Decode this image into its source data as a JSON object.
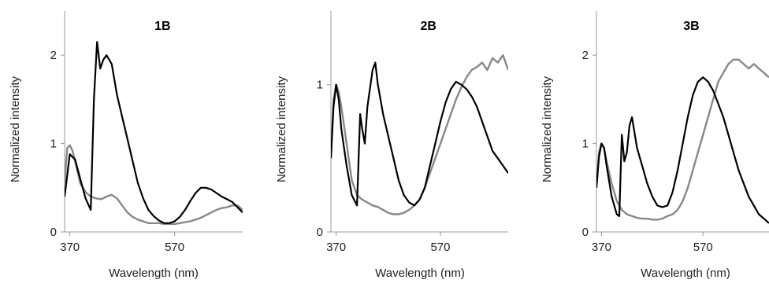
{
  "chart_data": [
    {
      "type": "line",
      "title": "1B",
      "xlabel": "Wavelength  (nm)",
      "ylabel": "Normalized intensity",
      "xlim": [
        360,
        700
      ],
      "ylim": [
        0,
        2.5
      ],
      "xticks": [
        370,
        570
      ],
      "yticks": [
        0,
        1,
        2
      ],
      "grid": false,
      "legend": "none",
      "series": [
        {
          "color": "#000000",
          "x": [
            360,
            370,
            380,
            390,
            400,
            410,
            416,
            422,
            428,
            434,
            440,
            450,
            460,
            470,
            480,
            490,
            500,
            510,
            520,
            530,
            540,
            550,
            560,
            570,
            580,
            590,
            600,
            610,
            620,
            630,
            640,
            650,
            660,
            670,
            680,
            690,
            700
          ],
          "y": [
            0.4,
            0.88,
            0.82,
            0.6,
            0.38,
            0.25,
            1.5,
            2.15,
            1.85,
            1.95,
            2.0,
            1.9,
            1.55,
            1.3,
            1.05,
            0.8,
            0.55,
            0.38,
            0.25,
            0.18,
            0.13,
            0.1,
            0.1,
            0.12,
            0.17,
            0.25,
            0.35,
            0.44,
            0.5,
            0.5,
            0.48,
            0.44,
            0.4,
            0.37,
            0.34,
            0.28,
            0.22
          ]
        },
        {
          "color": "#888888",
          "x": [
            360,
            365,
            370,
            375,
            380,
            390,
            400,
            410,
            420,
            430,
            440,
            450,
            460,
            470,
            480,
            490,
            500,
            510,
            520,
            530,
            540,
            550,
            560,
            570,
            580,
            590,
            600,
            610,
            620,
            630,
            640,
            650,
            660,
            670,
            680,
            690,
            700
          ],
          "y": [
            0.55,
            0.95,
            0.98,
            0.92,
            0.8,
            0.55,
            0.45,
            0.4,
            0.38,
            0.37,
            0.4,
            0.42,
            0.38,
            0.3,
            0.22,
            0.17,
            0.14,
            0.12,
            0.1,
            0.1,
            0.1,
            0.09,
            0.09,
            0.09,
            0.1,
            0.11,
            0.12,
            0.14,
            0.16,
            0.19,
            0.22,
            0.25,
            0.27,
            0.28,
            0.3,
            0.3,
            0.25
          ]
        }
      ]
    },
    {
      "type": "line",
      "title": "2B",
      "xlabel": "Wavelength  (nm)",
      "ylabel": "Normalized intensity",
      "xlim": [
        360,
        700
      ],
      "ylim": [
        0,
        1.5
      ],
      "xticks": [
        370,
        570
      ],
      "yticks": [
        0,
        1
      ],
      "grid": false,
      "legend": "none",
      "series": [
        {
          "color": "#000000",
          "x": [
            360,
            365,
            370,
            375,
            380,
            390,
            400,
            410,
            416,
            420,
            425,
            430,
            440,
            445,
            450,
            460,
            470,
            480,
            490,
            500,
            510,
            520,
            530,
            540,
            550,
            560,
            570,
            580,
            590,
            600,
            610,
            620,
            630,
            640,
            650,
            660,
            670,
            680,
            690,
            700
          ],
          "y": [
            0.5,
            0.85,
            1.0,
            0.9,
            0.7,
            0.45,
            0.25,
            0.18,
            0.8,
            0.7,
            0.6,
            0.85,
            1.1,
            1.15,
            1.0,
            0.8,
            0.65,
            0.5,
            0.35,
            0.25,
            0.2,
            0.18,
            0.22,
            0.3,
            0.45,
            0.6,
            0.75,
            0.88,
            0.97,
            1.02,
            1.0,
            0.97,
            0.92,
            0.85,
            0.75,
            0.65,
            0.55,
            0.5,
            0.45,
            0.4
          ]
        },
        {
          "color": "#888888",
          "x": [
            360,
            365,
            370,
            375,
            380,
            390,
            400,
            410,
            420,
            430,
            440,
            450,
            460,
            470,
            480,
            490,
            500,
            510,
            520,
            530,
            540,
            550,
            560,
            570,
            580,
            590,
            600,
            610,
            620,
            630,
            640,
            650,
            660,
            670,
            680,
            690,
            700
          ],
          "y": [
            0.5,
            0.9,
            1.0,
            0.95,
            0.85,
            0.6,
            0.35,
            0.25,
            0.22,
            0.2,
            0.18,
            0.17,
            0.15,
            0.13,
            0.12,
            0.12,
            0.13,
            0.15,
            0.18,
            0.22,
            0.3,
            0.4,
            0.5,
            0.6,
            0.7,
            0.8,
            0.9,
            0.98,
            1.05,
            1.1,
            1.12,
            1.15,
            1.1,
            1.18,
            1.15,
            1.2,
            1.1
          ]
        }
      ]
    },
    {
      "type": "line",
      "title": "3B",
      "xlabel": "Wavelength  (nm)",
      "ylabel": "Normalized intensity",
      "xlim": [
        360,
        700
      ],
      "ylim": [
        0,
        2.5
      ],
      "xticks": [
        370,
        570
      ],
      "yticks": [
        0,
        1,
        2
      ],
      "grid": false,
      "legend": "none",
      "series": [
        {
          "color": "#000000",
          "x": [
            360,
            365,
            370,
            375,
            380,
            390,
            400,
            405,
            410,
            415,
            420,
            425,
            430,
            440,
            450,
            460,
            470,
            480,
            490,
            500,
            510,
            520,
            530,
            540,
            550,
            560,
            570,
            580,
            590,
            600,
            610,
            620,
            630,
            640,
            650,
            660,
            670,
            680,
            690,
            700
          ],
          "y": [
            0.5,
            0.85,
            1.0,
            0.95,
            0.75,
            0.4,
            0.2,
            0.18,
            1.1,
            0.8,
            0.9,
            1.2,
            1.3,
            0.95,
            0.75,
            0.55,
            0.4,
            0.3,
            0.28,
            0.3,
            0.45,
            0.7,
            1.0,
            1.3,
            1.55,
            1.7,
            1.75,
            1.7,
            1.6,
            1.45,
            1.3,
            1.1,
            0.9,
            0.7,
            0.55,
            0.4,
            0.3,
            0.2,
            0.15,
            0.1
          ]
        },
        {
          "color": "#888888",
          "x": [
            360,
            365,
            370,
            375,
            380,
            390,
            400,
            410,
            420,
            430,
            440,
            450,
            460,
            470,
            480,
            490,
            500,
            510,
            520,
            530,
            540,
            550,
            560,
            570,
            580,
            590,
            600,
            610,
            620,
            630,
            640,
            650,
            660,
            670,
            680,
            690,
            700
          ],
          "y": [
            0.5,
            0.9,
            1.0,
            0.95,
            0.8,
            0.55,
            0.35,
            0.25,
            0.2,
            0.18,
            0.16,
            0.15,
            0.15,
            0.14,
            0.14,
            0.15,
            0.18,
            0.2,
            0.25,
            0.35,
            0.5,
            0.7,
            0.9,
            1.1,
            1.3,
            1.5,
            1.7,
            1.8,
            1.9,
            1.95,
            1.95,
            1.9,
            1.85,
            1.9,
            1.85,
            1.8,
            1.75
          ]
        }
      ]
    }
  ]
}
